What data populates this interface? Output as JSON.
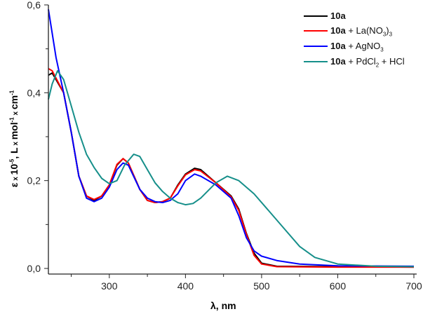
{
  "chart_data": {
    "type": "line",
    "xlabel": [
      {
        "t": "λ, nm"
      }
    ],
    "ylabel": [
      {
        "t": "ε"
      },
      {
        "t": " x ",
        "c": "sm"
      },
      {
        "t": "10"
      },
      {
        "t": "-5",
        "c": "sup"
      },
      {
        "t": ", L"
      },
      {
        "t": " x ",
        "c": "sm"
      },
      {
        "t": "mol"
      },
      {
        "t": "-1",
        "c": "sup"
      },
      {
        "t": " x ",
        "c": "sm"
      },
      {
        "t": "cm"
      },
      {
        "t": "-1",
        "c": "sup"
      }
    ],
    "xlim": [
      220,
      700
    ],
    "ylim": [
      0,
      0.6
    ],
    "xticks": [
      300,
      400,
      500,
      600,
      700
    ],
    "xticklabels": [
      "300",
      "400",
      "500",
      "600",
      "700"
    ],
    "xminor": [
      250,
      350,
      450,
      550,
      650
    ],
    "yticks": [
      0,
      0.2,
      0.4,
      0.6
    ],
    "yticklabels": [
      "0,0",
      "0,2",
      "0,4",
      "0,6"
    ],
    "yminor": [
      0.1,
      0.3,
      0.5
    ],
    "grid": false,
    "legend_position": "top-right",
    "series": [
      {
        "name": [
          {
            "t": "10a",
            "c": "b"
          }
        ],
        "color": "#000000",
        "x": [
          220,
          225,
          240,
          250,
          260,
          270,
          280,
          290,
          300,
          310,
          318,
          325,
          340,
          350,
          360,
          370,
          380,
          390,
          400,
          412,
          420,
          440,
          460,
          470,
          480,
          490,
          500,
          520,
          600,
          700
        ],
        "y": [
          0.44,
          0.445,
          0.4,
          0.31,
          0.21,
          0.165,
          0.155,
          0.165,
          0.19,
          0.235,
          0.25,
          0.24,
          0.18,
          0.155,
          0.15,
          0.152,
          0.16,
          0.19,
          0.215,
          0.228,
          0.225,
          0.195,
          0.165,
          0.135,
          0.08,
          0.035,
          0.012,
          0.005,
          0.004,
          0.003
        ]
      },
      {
        "name": [
          {
            "t": "10a",
            "c": "b"
          },
          {
            "t": " + La(NO"
          },
          {
            "t": "3",
            "c": "sub"
          },
          {
            "t": ")"
          },
          {
            "t": "3",
            "c": "sub"
          }
        ],
        "color": "#ff0000",
        "x": [
          220,
          225,
          240,
          250,
          260,
          270,
          280,
          290,
          300,
          310,
          318,
          325,
          340,
          350,
          360,
          370,
          380,
          390,
          400,
          412,
          420,
          440,
          460,
          470,
          480,
          490,
          500,
          520,
          600,
          700
        ],
        "y": [
          0.455,
          0.45,
          0.4,
          0.31,
          0.21,
          0.165,
          0.157,
          0.165,
          0.19,
          0.237,
          0.25,
          0.24,
          0.18,
          0.155,
          0.15,
          0.152,
          0.16,
          0.188,
          0.213,
          0.225,
          0.222,
          0.195,
          0.163,
          0.132,
          0.078,
          0.03,
          0.01,
          0.004,
          0.003,
          0.003
        ]
      },
      {
        "name": [
          {
            "t": "10a",
            "c": "b"
          },
          {
            "t": " + AgNO"
          },
          {
            "t": "3",
            "c": "sub"
          }
        ],
        "color": "#0000ff",
        "x": [
          220,
          230,
          240,
          250,
          260,
          270,
          280,
          290,
          300,
          310,
          318,
          325,
          340,
          350,
          360,
          370,
          380,
          390,
          400,
          412,
          420,
          440,
          460,
          470,
          480,
          490,
          500,
          520,
          550,
          600,
          700
        ],
        "y": [
          0.59,
          0.48,
          0.4,
          0.31,
          0.21,
          0.16,
          0.152,
          0.16,
          0.185,
          0.225,
          0.24,
          0.235,
          0.18,
          0.16,
          0.152,
          0.15,
          0.155,
          0.17,
          0.2,
          0.215,
          0.21,
          0.19,
          0.16,
          0.12,
          0.07,
          0.04,
          0.028,
          0.018,
          0.01,
          0.006,
          0.005
        ]
      },
      {
        "name": [
          {
            "t": "10a",
            "c": "b"
          },
          {
            "t": " + PdCl"
          },
          {
            "t": "2",
            "c": "sub"
          },
          {
            "t": " + HCl"
          }
        ],
        "color": "#168f8a",
        "x": [
          220,
          225,
          232,
          240,
          250,
          260,
          270,
          280,
          290,
          300,
          310,
          320,
          332,
          340,
          350,
          360,
          370,
          380,
          390,
          400,
          410,
          420,
          440,
          455,
          470,
          490,
          510,
          530,
          550,
          570,
          600,
          650,
          700
        ],
        "y": [
          0.385,
          0.42,
          0.45,
          0.43,
          0.37,
          0.31,
          0.26,
          0.23,
          0.205,
          0.193,
          0.2,
          0.235,
          0.26,
          0.255,
          0.225,
          0.195,
          0.175,
          0.16,
          0.15,
          0.145,
          0.148,
          0.16,
          0.195,
          0.21,
          0.2,
          0.17,
          0.13,
          0.09,
          0.05,
          0.025,
          0.01,
          0.005,
          0.004
        ]
      }
    ]
  }
}
